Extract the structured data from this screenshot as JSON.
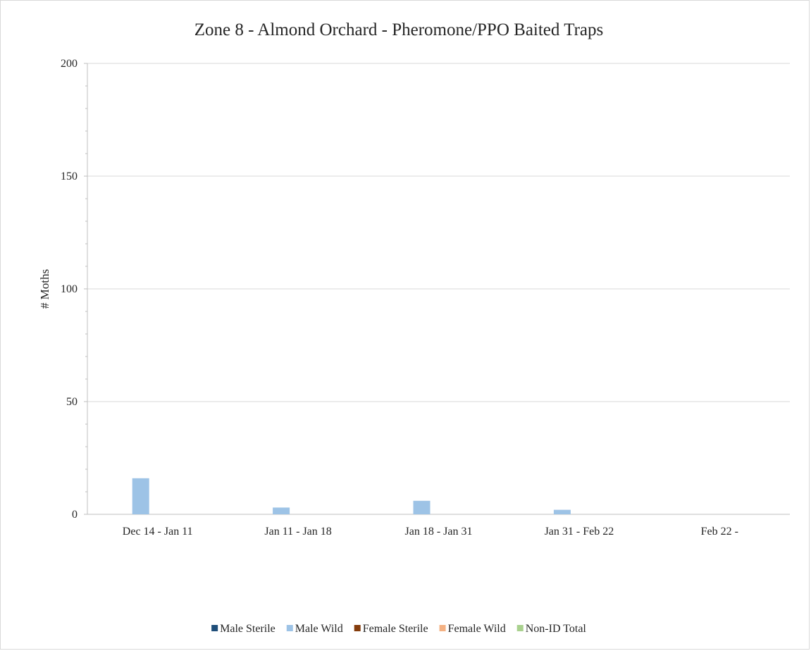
{
  "chart_data": {
    "type": "bar",
    "title": "Zone 8 - Almond Orchard - Pheromone/PPO Baited Traps",
    "xlabel": "",
    "ylabel": "# Moths",
    "ylim": [
      0,
      200
    ],
    "yticks": [
      0,
      50,
      100,
      150,
      200
    ],
    "grid": true,
    "legend_position": "bottom",
    "categories": [
      "Dec 14 - Jan 11",
      "Jan 11 - Jan 18",
      "Jan 18 - Jan 31",
      "Jan 31 - Feb 22",
      "Feb 22 -"
    ],
    "series": [
      {
        "name": "Male Sterile",
        "color": "#1f4e79",
        "values": [
          0,
          0,
          0,
          0,
          0
        ]
      },
      {
        "name": "Male Wild",
        "color": "#9dc3e6",
        "values": [
          16,
          3,
          6,
          2,
          0
        ]
      },
      {
        "name": "Female Sterile",
        "color": "#843c0c",
        "values": [
          0,
          0,
          0,
          0,
          0
        ]
      },
      {
        "name": "Female Wild",
        "color": "#f4b183",
        "values": [
          0,
          0,
          0,
          0,
          0
        ]
      },
      {
        "name": "Non-ID Total",
        "color": "#a9d18e",
        "values": [
          0,
          0,
          0,
          0,
          0
        ]
      }
    ]
  }
}
